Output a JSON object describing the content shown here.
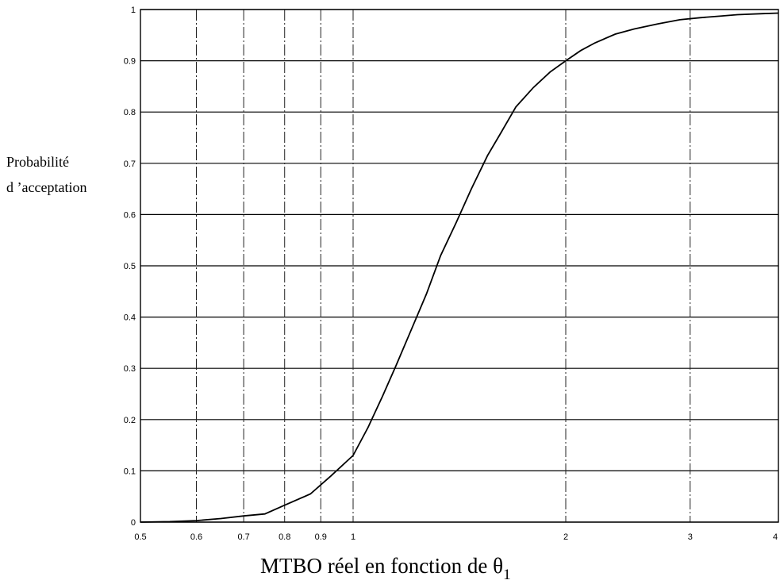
{
  "chart_data": {
    "type": "line",
    "title": "",
    "xlabel": "MTBO réel en fonction de θ",
    "xlabel_subscript": "1",
    "ylabel_lines": [
      "Probabilité",
      "d ’acceptation"
    ],
    "x_scale": "log",
    "xlim": [
      0.5,
      4
    ],
    "ylim": [
      0,
      1
    ],
    "grid": true,
    "x_ticks": [
      0.5,
      0.6,
      0.7,
      0.8,
      0.9,
      1,
      2,
      3,
      4
    ],
    "x_tick_labels": [
      "0.5",
      "0.6",
      "0.7",
      "0.8",
      "0.9",
      "1",
      "2",
      "3",
      "4"
    ],
    "y_ticks": [
      0,
      0.1,
      0.2,
      0.3,
      0.4,
      0.5,
      0.6,
      0.7,
      0.8,
      0.9,
      1
    ],
    "y_tick_labels": [
      "0",
      "0.1",
      "0.2",
      "0.3",
      "0.4",
      "0.5",
      "0.6",
      "0.7",
      "0.8",
      "0.9",
      "1"
    ],
    "series": [
      {
        "x": [
          0.5,
          0.55,
          0.6,
          0.65,
          0.7,
          0.75,
          0.8,
          0.87,
          0.93,
          1.0,
          1.05,
          1.1,
          1.15,
          1.2,
          1.27,
          1.33,
          1.4,
          1.47,
          1.55,
          1.62,
          1.7,
          1.8,
          1.9,
          2.0,
          2.1,
          2.2,
          2.35,
          2.5,
          2.7,
          2.9,
          3.1,
          3.3,
          3.5,
          3.8,
          4.0
        ],
        "y": [
          0.0,
          0.001,
          0.003,
          0.007,
          0.012,
          0.016,
          0.033,
          0.055,
          0.09,
          0.13,
          0.185,
          0.245,
          0.305,
          0.365,
          0.445,
          0.52,
          0.585,
          0.65,
          0.715,
          0.76,
          0.81,
          0.848,
          0.878,
          0.9,
          0.92,
          0.935,
          0.952,
          0.962,
          0.972,
          0.98,
          0.984,
          0.987,
          0.99,
          0.992,
          0.993
        ]
      }
    ]
  }
}
